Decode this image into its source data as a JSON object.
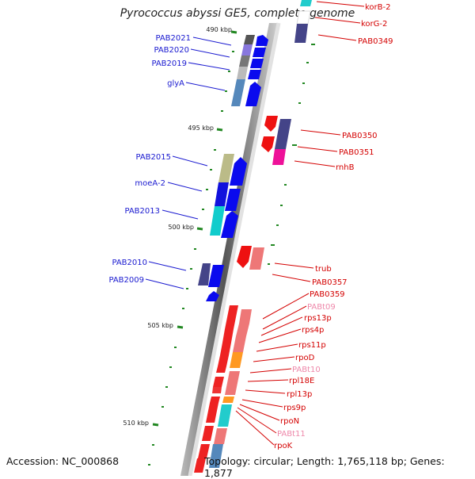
{
  "title": "Pyrococcus abyssi GE5, complete genome",
  "accession": "Accession: NC_000868",
  "topology": "Topology: circular; Length: 1,765,118 bp; Genes: 1,877",
  "scale_labels": [
    "490 kbp",
    "495 kbp",
    "500 kbp",
    "505 kbp",
    "510 kbp"
  ],
  "colors": {
    "left_gene_label": "#1a1ad0",
    "right_gene_label": "#d40000",
    "trna_label": "#ee88aa",
    "tick": "#228822",
    "forward_gene": "#0a0aee",
    "reverse_gene": "#ee0a0a"
  },
  "left_labels": [
    "PAB2021",
    "PAB2020",
    "PAB2019",
    "glyA",
    "PAB2015",
    "moeA-2",
    "PAB2013",
    "PAB2010",
    "PAB2009"
  ],
  "right_labels": [
    "korB-2",
    "korG-2",
    "PAB0349",
    "PAB0350",
    "PAB0351",
    "rnhB",
    "trub",
    "PAB0357",
    "PAB0359",
    "PABt09",
    "rps13p",
    "rps4p",
    "rps11p",
    "rpoD",
    "PABt10",
    "rpl18E",
    "rpl13p",
    "rps9p",
    "rpoN",
    "PABt11",
    "rpoK"
  ]
}
